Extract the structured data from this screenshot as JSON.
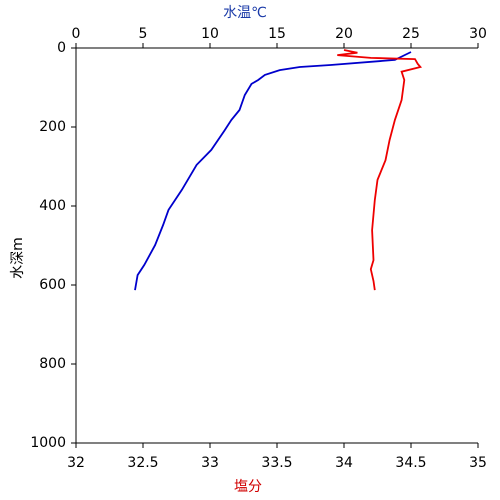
{
  "chart_data": {
    "type": "line",
    "x_label": "塩分",
    "x2_label": "水温℃",
    "y_label": "水深m",
    "xlim": [
      32,
      35
    ],
    "xticks": [
      32,
      32.5,
      33,
      33.5,
      34,
      34.5,
      35
    ],
    "x2lim": [
      0,
      30
    ],
    "x2ticks": [
      0,
      5,
      10,
      15,
      20,
      25,
      30
    ],
    "ylim": [
      0,
      1000
    ],
    "yticks": [
      0,
      200,
      400,
      600,
      800,
      1000
    ],
    "y_inverted": true,
    "series": [
      {
        "color": "#0000cc",
        "axis": "x2",
        "x": [
          25.0,
          23.8,
          19.0,
          16.7,
          15.2,
          14.1,
          13.6,
          13.1,
          12.6,
          12.2,
          11.6,
          11.1,
          10.1,
          9.0,
          7.9,
          6.9,
          6.5,
          5.9,
          5.1,
          4.6,
          4.4
        ],
        "values": [
          10,
          30,
          43,
          48,
          56,
          68,
          81,
          91,
          119,
          157,
          182,
          208,
          258,
          296,
          359,
          410,
          448,
          499,
          549,
          575,
          613
        ]
      },
      {
        "color": "#ee0000",
        "axis": "x",
        "x": [
          34.0,
          34.1,
          33.95,
          34.2,
          34.53,
          34.55,
          34.57,
          34.43,
          34.45,
          34.43,
          34.38,
          34.34,
          34.31,
          34.25,
          34.23,
          34.21,
          34.22,
          34.2,
          34.22,
          34.23
        ],
        "values": [
          5,
          12,
          18,
          25,
          28,
          40,
          48,
          60,
          81,
          132,
          182,
          233,
          284,
          334,
          385,
          461,
          537,
          560,
          590,
          613
        ]
      }
    ]
  }
}
